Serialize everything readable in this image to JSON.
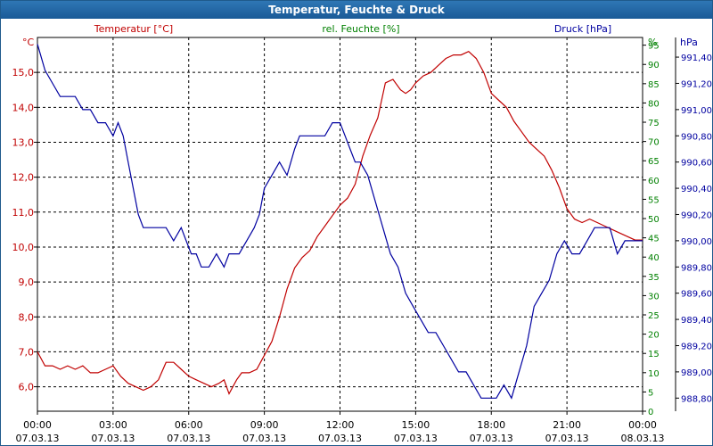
{
  "window": {
    "title": "Temperatur, Feuchte & Druck"
  },
  "chart_data": {
    "type": "line",
    "title": "Temperatur, Feuchte & Druck",
    "xlabel": "",
    "x_ticks": [
      {
        "time": "00:00",
        "date": "07.03.13"
      },
      {
        "time": "03:00",
        "date": "07.03.13"
      },
      {
        "time": "06:00",
        "date": "07.03.13"
      },
      {
        "time": "09:00",
        "date": "07.03.13"
      },
      {
        "time": "12:00",
        "date": "07.03.13"
      },
      {
        "time": "15:00",
        "date": "07.03.13"
      },
      {
        "time": "18:00",
        "date": "07.03.13"
      },
      {
        "time": "21:00",
        "date": "07.03.13"
      },
      {
        "time": "00:00",
        "date": "08.03.13"
      }
    ],
    "xlim_hours": [
      0,
      24
    ],
    "axes": {
      "temperature": {
        "label": "Temperatur [°C]",
        "unit": "°C",
        "color": "#c00000",
        "ylim": [
          5.3,
          16.0
        ],
        "ticks": [
          "6,0",
          "7,0",
          "8,0",
          "9,0",
          "10,0",
          "11,0",
          "12,0",
          "13,0",
          "14,0",
          "15,0"
        ],
        "tick_values": [
          6,
          7,
          8,
          9,
          10,
          11,
          12,
          13,
          14,
          15
        ]
      },
      "humidity": {
        "label": "rel. Feuchte [%]",
        "unit": "%",
        "color": "#008000",
        "ylim": [
          0,
          97
        ],
        "ticks": [
          "0",
          "5",
          "10",
          "15",
          "20",
          "25",
          "30",
          "35",
          "40",
          "45",
          "50",
          "55",
          "60",
          "65",
          "70",
          "75",
          "80",
          "85",
          "90",
          "95"
        ],
        "tick_values": [
          0,
          5,
          10,
          15,
          20,
          25,
          30,
          35,
          40,
          45,
          50,
          55,
          60,
          65,
          70,
          75,
          80,
          85,
          90,
          95
        ]
      },
      "pressure": {
        "label": "Druck [hPa]",
        "unit": "hPa",
        "color": "#0000a0",
        "ylim": [
          988.7,
          991.55
        ],
        "ticks": [
          "988,80",
          "989,00",
          "989,20",
          "989,40",
          "989,60",
          "989,80",
          "990,00",
          "990,20",
          "990,40",
          "990,60",
          "990,80",
          "991,00",
          "991,20",
          "991,40"
        ],
        "tick_values": [
          988.8,
          989.0,
          989.2,
          989.4,
          989.6,
          989.8,
          990.0,
          990.2,
          990.4,
          990.6,
          990.8,
          991.0,
          991.2,
          991.4
        ]
      }
    },
    "series": [
      {
        "name": "Temperatur",
        "axis": "temperature",
        "color": "#c00000",
        "x": [
          0,
          0.3,
          0.6,
          0.9,
          1.2,
          1.5,
          1.8,
          2.1,
          2.4,
          2.7,
          3.0,
          3.3,
          3.6,
          3.9,
          4.2,
          4.5,
          4.8,
          5.1,
          5.4,
          5.7,
          6.0,
          6.3,
          6.6,
          6.9,
          7.2,
          7.4,
          7.6,
          7.9,
          8.1,
          8.4,
          8.7,
          9.0,
          9.3,
          9.6,
          9.9,
          10.2,
          10.5,
          10.8,
          11.1,
          11.4,
          11.7,
          12.0,
          12.3,
          12.6,
          12.9,
          13.2,
          13.5,
          13.8,
          14.1,
          14.4,
          14.6,
          14.8,
          15.0,
          15.3,
          15.6,
          15.9,
          16.2,
          16.5,
          16.8,
          17.1,
          17.4,
          17.7,
          18.0,
          18.3,
          18.6,
          18.9,
          19.2,
          19.5,
          19.8,
          20.1,
          20.4,
          20.7,
          21.0,
          21.3,
          21.6,
          21.9,
          22.2,
          22.5,
          22.8,
          23.1,
          23.4,
          23.7,
          24.0
        ],
        "y": [
          7.0,
          6.6,
          6.6,
          6.5,
          6.6,
          6.5,
          6.6,
          6.4,
          6.4,
          6.5,
          6.6,
          6.3,
          6.1,
          6.0,
          5.9,
          6.0,
          6.2,
          6.7,
          6.7,
          6.5,
          6.3,
          6.2,
          6.1,
          6.0,
          6.1,
          6.2,
          5.8,
          6.2,
          6.4,
          6.4,
          6.5,
          6.9,
          7.3,
          8.0,
          8.8,
          9.4,
          9.7,
          9.9,
          10.3,
          10.6,
          10.9,
          11.2,
          11.4,
          11.8,
          12.6,
          13.2,
          13.7,
          14.7,
          14.8,
          14.5,
          14.4,
          14.5,
          14.7,
          14.9,
          15.0,
          15.2,
          15.4,
          15.5,
          15.5,
          15.6,
          15.4,
          15.0,
          14.4,
          14.2,
          14.0,
          13.6,
          13.3,
          13.0,
          12.8,
          12.6,
          12.2,
          11.7,
          11.1,
          10.8,
          10.7,
          10.8,
          10.7,
          10.6,
          10.5,
          10.4,
          10.3,
          10.2,
          10.2
        ]
      },
      {
        "name": "Druck",
        "axis": "pressure",
        "color": "#0000a0",
        "x": [
          0,
          0.3,
          0.6,
          0.9,
          1.2,
          1.5,
          1.8,
          2.1,
          2.4,
          2.7,
          3.0,
          3.2,
          3.4,
          3.6,
          3.8,
          4.0,
          4.2,
          4.4,
          4.6,
          4.8,
          5.1,
          5.4,
          5.7,
          5.9,
          6.1,
          6.3,
          6.5,
          6.8,
          7.1,
          7.4,
          7.6,
          7.8,
          8.0,
          8.3,
          8.6,
          8.8,
          9.0,
          9.3,
          9.6,
          9.9,
          10.2,
          10.4,
          10.6,
          10.8,
          11.1,
          11.4,
          11.7,
          12.0,
          12.2,
          12.4,
          12.6,
          12.8,
          13.1,
          13.4,
          13.7,
          14.0,
          14.3,
          14.6,
          14.9,
          15.2,
          15.5,
          15.8,
          16.1,
          16.4,
          16.7,
          17.0,
          17.3,
          17.6,
          17.9,
          18.2,
          18.5,
          18.8,
          19.1,
          19.4,
          19.7,
          20.0,
          20.3,
          20.6,
          20.9,
          21.2,
          21.5,
          21.8,
          22.1,
          22.4,
          22.7,
          23.0,
          23.3,
          23.6,
          24.0
        ],
        "y": [
          991.5,
          991.3,
          991.2,
          991.1,
          991.1,
          991.1,
          991.0,
          991.0,
          990.9,
          990.9,
          990.8,
          990.9,
          990.8,
          990.6,
          990.4,
          990.2,
          990.1,
          990.1,
          990.1,
          990.1,
          990.1,
          990.0,
          990.1,
          990.0,
          989.9,
          989.9,
          989.8,
          989.8,
          989.9,
          989.8,
          989.9,
          989.9,
          989.9,
          990.0,
          990.1,
          990.2,
          990.4,
          990.5,
          990.6,
          990.5,
          990.7,
          990.8,
          990.8,
          990.8,
          990.8,
          990.8,
          990.9,
          990.9,
          990.8,
          990.7,
          990.6,
          990.6,
          990.5,
          990.3,
          990.1,
          989.9,
          989.8,
          989.6,
          989.5,
          989.4,
          989.3,
          989.3,
          989.2,
          989.1,
          989.0,
          989.0,
          988.9,
          988.8,
          988.8,
          988.8,
          988.9,
          988.8,
          989.0,
          989.2,
          989.5,
          989.6,
          989.7,
          989.9,
          990.0,
          989.9,
          989.9,
          990.0,
          990.1,
          990.1,
          990.1,
          989.9,
          990.0,
          990.0,
          990.0
        ]
      }
    ],
    "grid": true,
    "legend": "top labels per axis"
  }
}
